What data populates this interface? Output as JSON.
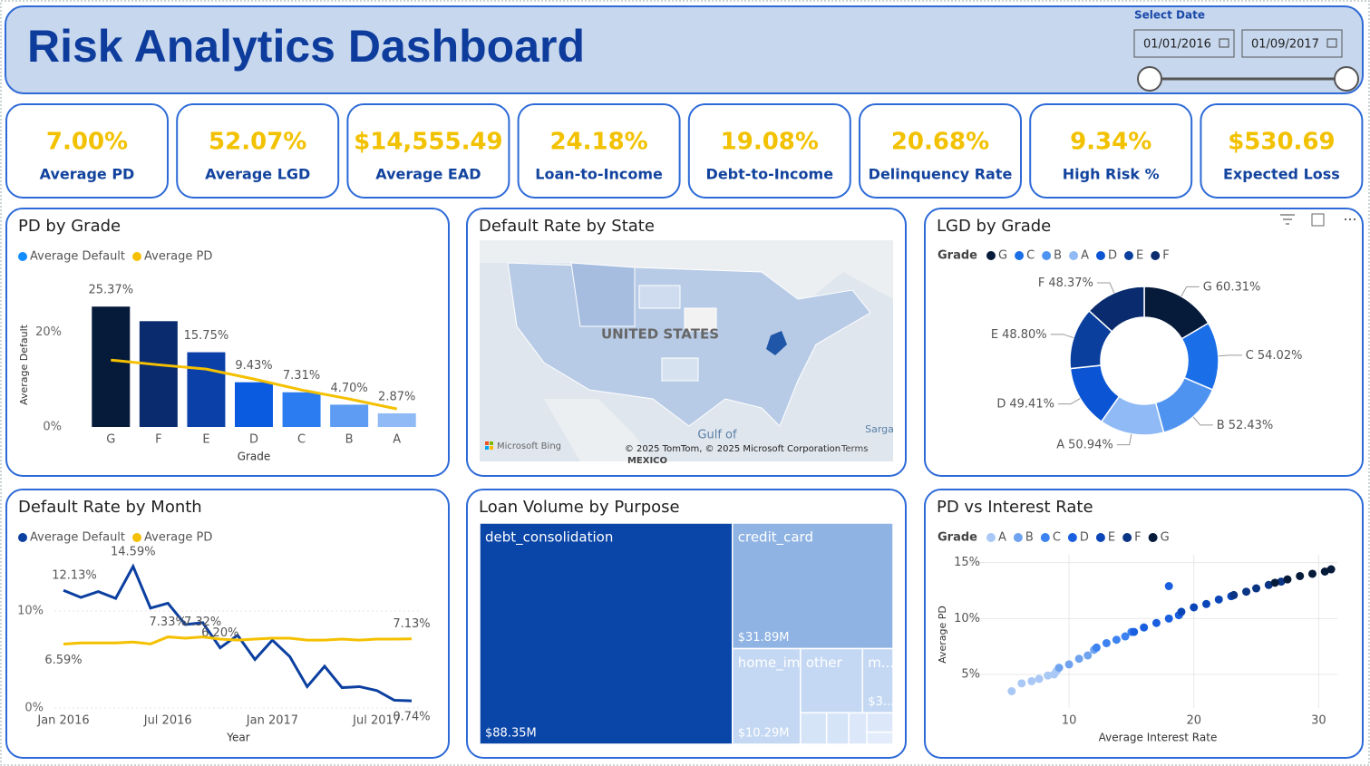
{
  "header": {
    "title": "Risk Analytics Dashboard",
    "date_label": "Select Date",
    "start_date": "01/01/2016",
    "end_date": "01/09/2017"
  },
  "kpis": [
    {
      "value": "7.00%",
      "label": "Average PD"
    },
    {
      "value": "52.07%",
      "label": "Average LGD"
    },
    {
      "value": "$14,555.49",
      "label": "Average EAD"
    },
    {
      "value": "24.18%",
      "label": "Loan-to-Income"
    },
    {
      "value": "19.08%",
      "label": "Debt-to-Income"
    },
    {
      "value": "20.68%",
      "label": "Delinquency Rate"
    },
    {
      "value": "9.34%",
      "label": "High Risk %"
    },
    {
      "value": "$530.69",
      "label": "Expected Loss"
    }
  ],
  "chart_data": [
    {
      "type": "bar",
      "title": "PD by Grade",
      "categories": [
        "G",
        "F",
        "E",
        "D",
        "C",
        "B",
        "A"
      ],
      "series": [
        {
          "name": "Average Default",
          "type": "bar",
          "color": "#118dff",
          "bar_colors": [
            "#061a3a",
            "#0a2c6e",
            "#0a40a8",
            "#0b5be0",
            "#2b7cf0",
            "#5d9cf2",
            "#8fbaf5"
          ],
          "values": [
            25.37,
            22.3,
            15.75,
            9.43,
            7.31,
            4.7,
            2.87
          ],
          "value_labels": [
            "25.37%",
            null,
            "15.75%",
            "9.43%",
            "7.31%",
            "4.70%",
            "2.87%"
          ]
        },
        {
          "name": "Average PD",
          "type": "line",
          "color": "#f5c000",
          "values": [
            14.1,
            13.1,
            12.2,
            10.1,
            7.8,
            5.9,
            3.8
          ]
        }
      ],
      "x_label": "Grade",
      "y_label": "Average Default",
      "ylim": [
        0,
        30
      ],
      "yticks": [
        {
          "value": 0,
          "label": "0%"
        },
        {
          "value": 20,
          "label": "20%"
        }
      ]
    },
    {
      "type": "map",
      "title": "Default Rate by State",
      "labels": [
        "UNITED STATES",
        "Gulf of",
        "MEXICO",
        "Sarga"
      ],
      "credits": [
        "Microsoft Bing",
        "© 2025 TomTom, © 2025 Microsoft Corporation",
        "Terms"
      ]
    },
    {
      "type": "donut",
      "title": "LGD by Grade",
      "legend_title": "Grade",
      "categories": [
        "G",
        "C",
        "B",
        "A",
        "D",
        "E",
        "F"
      ],
      "values": [
        60.31,
        54.02,
        52.43,
        50.94,
        49.41,
        48.8,
        48.37
      ],
      "value_labels": [
        "60.31%",
        "54.02%",
        "52.43%",
        "50.94%",
        "49.41%",
        "48.80%",
        "48.37%"
      ],
      "colors": [
        "#061a3a",
        "#1a6fe8",
        "#4f93f0",
        "#8fbaf5",
        "#0b55d4",
        "#0a3f9e",
        "#0a2c6e"
      ]
    },
    {
      "type": "line",
      "title": "Default Rate by Month",
      "categories": [
        "Jan 2016",
        null,
        null,
        null,
        null,
        null,
        "Jul 2016",
        null,
        null,
        null,
        null,
        null,
        "Jan 2017",
        null,
        null,
        null,
        null,
        null,
        "Jul 2017",
        null,
        null
      ],
      "series": [
        {
          "name": "Average Default",
          "color": "#0b3fa0",
          "values": [
            12.13,
            11.4,
            12.0,
            11.3,
            14.59,
            10.3,
            10.8,
            8.6,
            8.8,
            6.2,
            7.5,
            5.0,
            7.0,
            5.3,
            2.2,
            4.3,
            2.1,
            2.2,
            1.8,
            0.8,
            0.74
          ],
          "value_labels": [
            "12.13%",
            null,
            null,
            null,
            "14.59%",
            null,
            null,
            null,
            null,
            "6.20%",
            null,
            null,
            null,
            null,
            null,
            null,
            null,
            null,
            null,
            null,
            "0.74%"
          ]
        },
        {
          "name": "Average PD",
          "color": "#f5c000",
          "values": [
            6.59,
            6.7,
            6.7,
            6.7,
            6.8,
            6.6,
            7.33,
            7.2,
            7.32,
            7.1,
            7.0,
            7.1,
            7.2,
            7.2,
            7.0,
            7.0,
            7.1,
            7.0,
            7.1,
            7.1,
            7.13
          ],
          "value_labels": [
            "6.59%",
            null,
            null,
            null,
            null,
            null,
            "7.33%",
            null,
            "7.32%",
            null,
            null,
            null,
            null,
            null,
            null,
            null,
            null,
            null,
            null,
            null,
            "7.13%"
          ]
        }
      ],
      "x_label": "Year",
      "ylim": [
        0,
        15
      ],
      "yticks": [
        {
          "value": 0,
          "label": "0%"
        },
        {
          "value": 10,
          "label": "10%"
        }
      ]
    },
    {
      "type": "treemap",
      "title": "Loan Volume by Purpose",
      "categories": [
        "debt_consolidation",
        "credit_card",
        "home_impro...",
        "other",
        "m...",
        null,
        null,
        null,
        null,
        null
      ],
      "values": [
        88.35,
        31.89,
        10.29,
        6.3,
        3.1,
        1.3,
        1.1,
        0.9,
        0.8,
        0.5
      ],
      "value_labels": [
        "$88.35M",
        "$31.89M",
        "$10.29M",
        null,
        "$3...",
        null,
        null,
        null,
        null,
        null
      ],
      "colors": [
        "#0a45a8",
        "#8fb3e3",
        "#c4d8f3",
        "#c4d8f3",
        "#c4d8f3",
        "#d6e4f8",
        "#d6e4f8",
        "#dce8f9",
        "#dce8f9",
        "#e2ecfa"
      ]
    },
    {
      "type": "scatter",
      "title": "PD vs Interest Rate",
      "legend_title": "Grade",
      "series": [
        {
          "name": "A",
          "color": "#a9c8f5",
          "x": [
            5.4,
            6.2,
            7.0,
            7.6,
            8.3,
            8.8,
            9.0
          ],
          "values": [
            3.5,
            4.2,
            4.4,
            4.6,
            4.9,
            5.0,
            5.3
          ]
        },
        {
          "name": "B",
          "color": "#6fa3ef",
          "x": [
            9.2,
            10.0,
            10.8,
            11.5,
            12.0
          ],
          "values": [
            5.6,
            5.9,
            6.4,
            6.7,
            7.2
          ]
        },
        {
          "name": "C",
          "color": "#3c82f0",
          "x": [
            12.2,
            13.0,
            13.8,
            14.5,
            15.0
          ],
          "values": [
            7.4,
            7.8,
            8.1,
            8.4,
            8.8
          ]
        },
        {
          "name": "D",
          "color": "#1a5fe0",
          "x": [
            15.2,
            16.0,
            17.0,
            18.0,
            18.8,
            18.0
          ],
          "values": [
            8.8,
            9.2,
            9.6,
            10.0,
            10.3,
            12.9
          ]
        },
        {
          "name": "E",
          "color": "#0b46b8",
          "x": [
            19.0,
            20.0,
            21.0,
            22.0,
            23.0
          ],
          "values": [
            10.6,
            11.0,
            11.3,
            11.7,
            12.0
          ]
        },
        {
          "name": "F",
          "color": "#0a3484",
          "x": [
            23.2,
            24.2,
            25.0,
            26.0,
            27.0
          ],
          "values": [
            12.1,
            12.4,
            12.7,
            13.0,
            13.3
          ]
        },
        {
          "name": "G",
          "color": "#061a3a",
          "x": [
            26.5,
            27.5,
            28.5,
            29.5,
            30.5,
            31.0
          ],
          "values": [
            13.2,
            13.5,
            13.8,
            14.0,
            14.2,
            14.4
          ]
        }
      ],
      "x_label": "Average Interest Rate",
      "y_label": "Average PD",
      "xlim": [
        2,
        31.5
      ],
      "ylim": [
        2,
        15.7
      ],
      "xticks": [
        10,
        20,
        30
      ],
      "yticks": [
        {
          "value": 5,
          "label": "5%"
        },
        {
          "value": 10,
          "label": "10%"
        },
        {
          "value": 15,
          "label": "15%"
        }
      ]
    }
  ]
}
